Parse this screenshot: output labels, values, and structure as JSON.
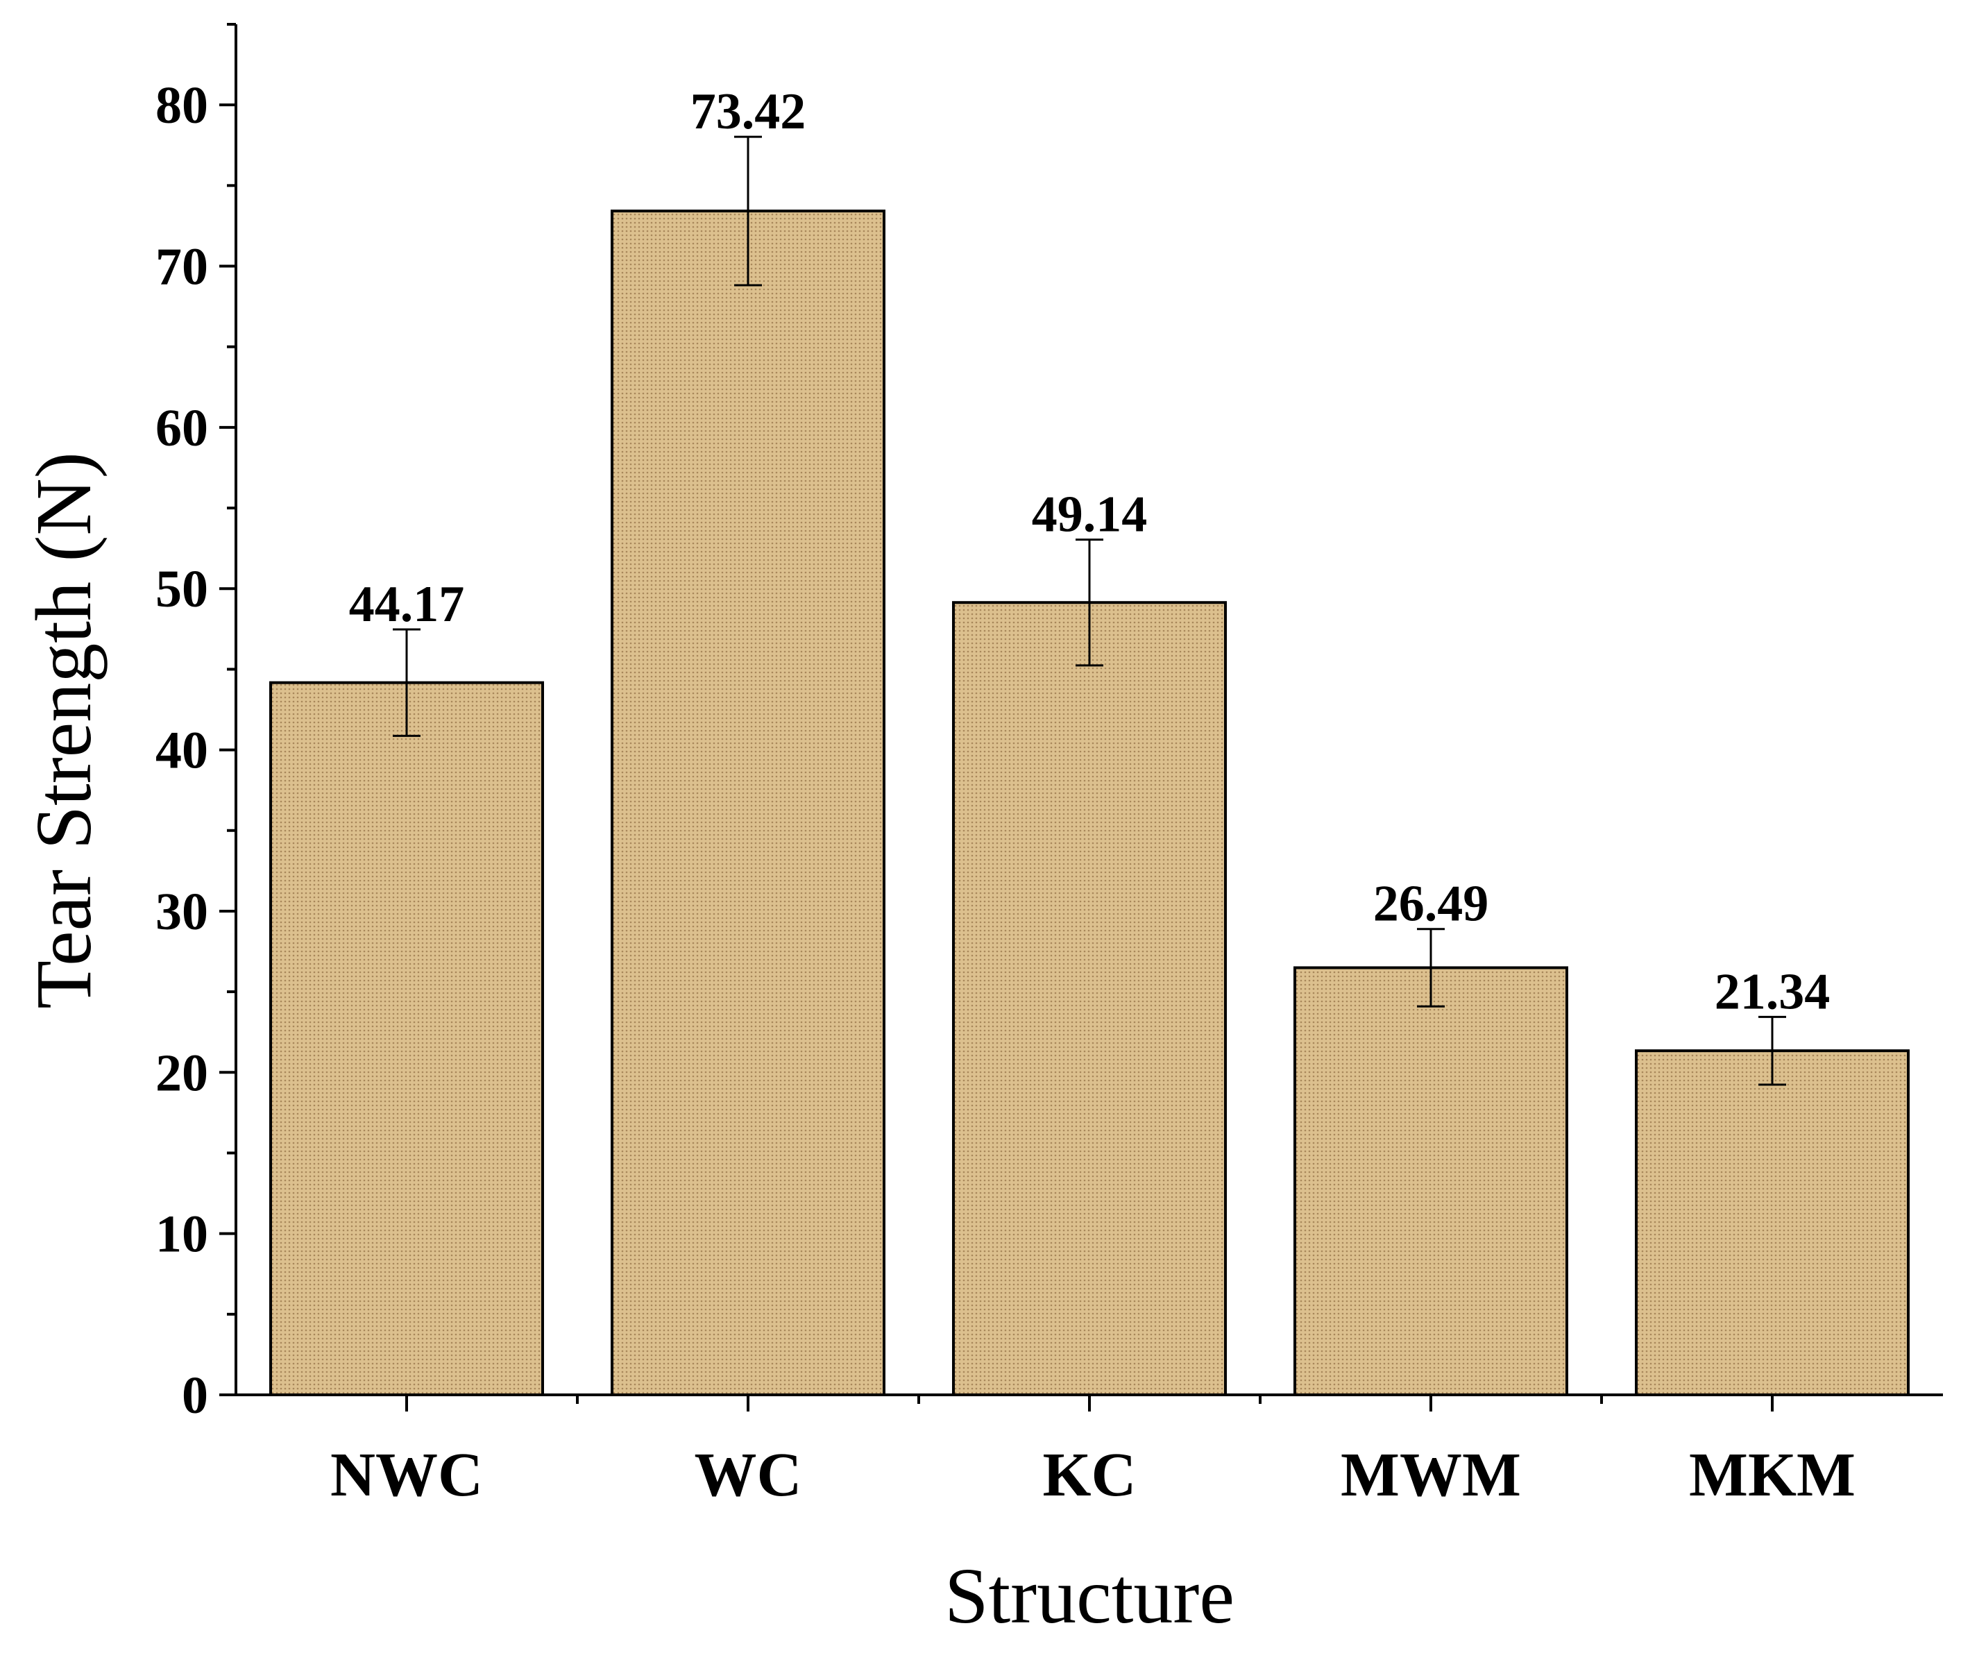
{
  "chart_data": {
    "type": "bar",
    "title": "",
    "xlabel": "Structure",
    "ylabel": "Tear Strength (N)",
    "categories": [
      "NWC",
      "WC",
      "KC",
      "MWM",
      "MKM"
    ],
    "values": [
      44.17,
      73.42,
      49.14,
      26.49,
      21.34
    ],
    "errors": [
      3.3,
      4.6,
      3.9,
      2.4,
      2.1
    ],
    "data_labels": [
      "44.17",
      "73.42",
      "49.14",
      "26.49",
      "21.34"
    ],
    "ylim": [
      0,
      85
    ],
    "yticks": [
      0,
      10,
      20,
      30,
      40,
      50,
      60,
      70,
      80
    ],
    "ytick_labels": [
      "0",
      "10",
      "20",
      "30",
      "40",
      "50",
      "60",
      "70",
      "80"
    ],
    "grid": false,
    "legend": "none",
    "colors": {
      "bar_fill": "#dcc08e",
      "bar_dot": "#a8875a",
      "bar_edge": "#000000",
      "axis": "#000000"
    }
  }
}
